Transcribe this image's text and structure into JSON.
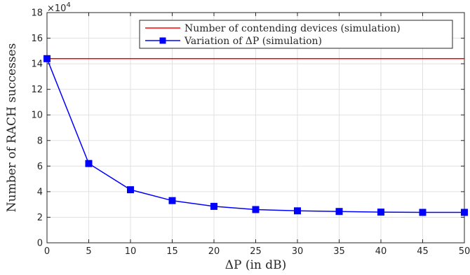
{
  "chart_data": {
    "type": "line",
    "title": "",
    "xlabel": "ΔP (in dB)",
    "ylabel": "Number of RACH successes",
    "y_multiplier_base": "×10",
    "y_multiplier_exp": "4",
    "xlim": [
      0,
      50
    ],
    "ylim": [
      0,
      18
    ],
    "xticks": [
      0,
      5,
      10,
      15,
      20,
      25,
      30,
      35,
      40,
      45,
      50
    ],
    "yticks": [
      0,
      2,
      4,
      6,
      8,
      10,
      12,
      14,
      16,
      18
    ],
    "grid": true,
    "legend_position": "top-right",
    "series": [
      {
        "name": "Number of contending devices (simulation)",
        "color": "#ff0000",
        "marker": "none",
        "x": [
          0,
          50
        ],
        "y": [
          14.4,
          14.4
        ]
      },
      {
        "name": "Variation of ΔP (simulation)",
        "color": "#0000ff",
        "marker": "square",
        "x": [
          0,
          5,
          10,
          15,
          20,
          25,
          30,
          35,
          40,
          45,
          50
        ],
        "y": [
          14.4,
          6.2,
          4.15,
          3.3,
          2.85,
          2.6,
          2.5,
          2.45,
          2.4,
          2.38,
          2.38
        ]
      }
    ]
  }
}
